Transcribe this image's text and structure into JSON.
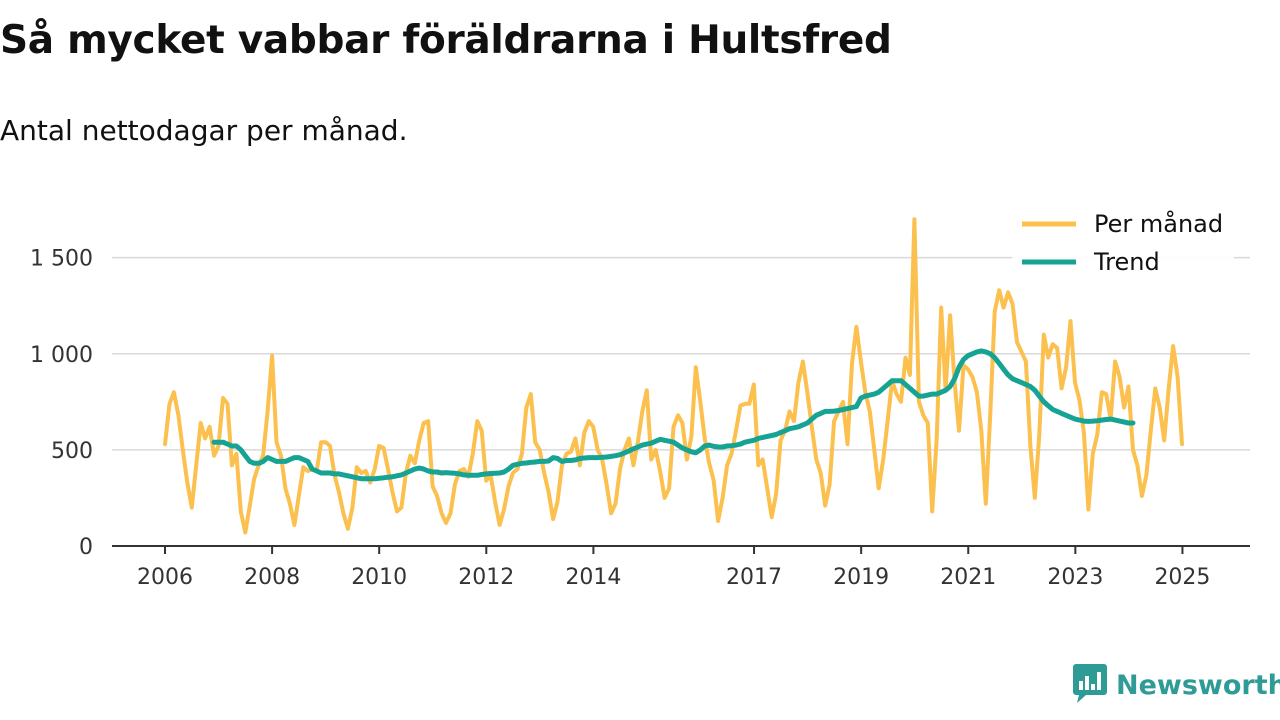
{
  "title": "Så mycket vabbar föräldrarna i Hultsfred",
  "subtitle": "Antal nettodagar per månad.",
  "brand": {
    "name": "Newsworthy",
    "color": "#2f9b96"
  },
  "chart_data": {
    "type": "line",
    "ylim": [
      0,
      1800
    ],
    "y_ticks": [
      0,
      500,
      1000,
      1500
    ],
    "y_tick_labels": [
      "0",
      "500",
      "1 000",
      "1 500"
    ],
    "x_range": [
      2006.0,
      2025.8
    ],
    "x_ticks": [
      2006,
      2008,
      2010,
      2012,
      2014,
      2017,
      2019,
      2021,
      2023,
      2025
    ],
    "x_tick_labels": [
      "2006",
      "2008",
      "2010",
      "2012",
      "2014",
      "2017",
      "2019",
      "2021",
      "2023",
      "2025"
    ],
    "grid": true,
    "legend_position": "top-right",
    "series": [
      {
        "name": "Per månad",
        "color": "#fbc04e",
        "x_start": 2006.0,
        "step": 0.0833,
        "values": [
          530,
          740,
          800,
          680,
          500,
          330,
          200,
          420,
          640,
          560,
          620,
          470,
          520,
          770,
          740,
          420,
          480,
          180,
          70,
          210,
          350,
          420,
          470,
          700,
          990,
          540,
          470,
          300,
          220,
          110,
          260,
          410,
          390,
          400,
          390,
          540,
          540,
          520,
          370,
          280,
          170,
          90,
          200,
          410,
          380,
          390,
          330,
          400,
          520,
          510,
          400,
          280,
          180,
          200,
          380,
          470,
          430,
          550,
          640,
          650,
          310,
          260,
          170,
          120,
          170,
          320,
          390,
          400,
          360,
          480,
          650,
          600,
          340,
          370,
          230,
          110,
          190,
          310,
          380,
          400,
          480,
          720,
          790,
          540,
          500,
          380,
          280,
          140,
          230,
          420,
          480,
          490,
          560,
          420,
          590,
          650,
          620,
          500,
          450,
          320,
          170,
          220,
          400,
          500,
          560,
          420,
          540,
          700,
          810,
          450,
          500,
          390,
          250,
          300,
          620,
          680,
          640,
          450,
          570,
          930,
          750,
          560,
          430,
          340,
          130,
          250,
          420,
          480,
          600,
          730,
          740,
          740,
          840,
          420,
          450,
          300,
          150,
          270,
          550,
          600,
          700,
          650,
          850,
          960,
          800,
          620,
          450,
          380,
          210,
          320,
          650,
          700,
          750,
          530,
          950,
          1140,
          960,
          800,
          700,
          500,
          300,
          450,
          650,
          860,
          790,
          750,
          980,
          890,
          1700,
          750,
          680,
          640,
          180,
          560,
          1240,
          810,
          1200,
          860,
          600,
          940,
          920,
          880,
          800,
          600,
          220,
          680,
          1220,
          1330,
          1240,
          1320,
          1260,
          1060,
          1010,
          960,
          520,
          250,
          580,
          1100,
          980,
          1050,
          1030,
          820,
          930,
          1170,
          850,
          760,
          590,
          190,
          480,
          580,
          800,
          790,
          660,
          960,
          880,
          720,
          830,
          500,
          420,
          260,
          370,
          600,
          820,
          720,
          550,
          820,
          1040,
          880,
          530
        ]
      },
      {
        "name": "Trend",
        "color": "#16a394",
        "x_start": 2006.9167,
        "step": 0.0833,
        "values": [
          540,
          540,
          540,
          530,
          520,
          520,
          500,
          470,
          440,
          430,
          430,
          440,
          460,
          450,
          440,
          440,
          440,
          450,
          460,
          460,
          450,
          440,
          400,
          390,
          380,
          380,
          380,
          375,
          375,
          370,
          365,
          360,
          355,
          350,
          350,
          350,
          350,
          352,
          355,
          358,
          360,
          365,
          370,
          380,
          390,
          400,
          405,
          400,
          390,
          385,
          385,
          380,
          382,
          380,
          378,
          375,
          370,
          368,
          368,
          368,
          372,
          375,
          377,
          378,
          380,
          385,
          400,
          420,
          425,
          430,
          432,
          435,
          437,
          440,
          440,
          442,
          460,
          455,
          440,
          445,
          445,
          448,
          455,
          458,
          460,
          460,
          460,
          462,
          463,
          466,
          470,
          475,
          485,
          495,
          505,
          515,
          525,
          530,
          535,
          545,
          555,
          550,
          545,
          540,
          525,
          510,
          500,
          490,
          485,
          500,
          520,
          525,
          518,
          515,
          515,
          520,
          522,
          525,
          530,
          540,
          545,
          550,
          560,
          565,
          570,
          575,
          580,
          590,
          600,
          610,
          615,
          620,
          630,
          640,
          660,
          680,
          690,
          700,
          700,
          702,
          705,
          710,
          715,
          720,
          725,
          770,
          780,
          785,
          790,
          800,
          820,
          840,
          860,
          860,
          860,
          840,
          820,
          800,
          780,
          780,
          785,
          790,
          790,
          800,
          810,
          830,
          870,
          930,
          970,
          990,
          1000,
          1010,
          1015,
          1010,
          1000,
          980,
          950,
          920,
          890,
          870,
          860,
          850,
          840,
          830,
          810,
          780,
          750,
          730,
          710,
          700,
          690,
          680,
          670,
          660,
          655,
          650,
          648,
          650,
          652,
          655,
          658,
          660,
          655,
          650,
          645,
          640,
          640
        ]
      }
    ]
  }
}
